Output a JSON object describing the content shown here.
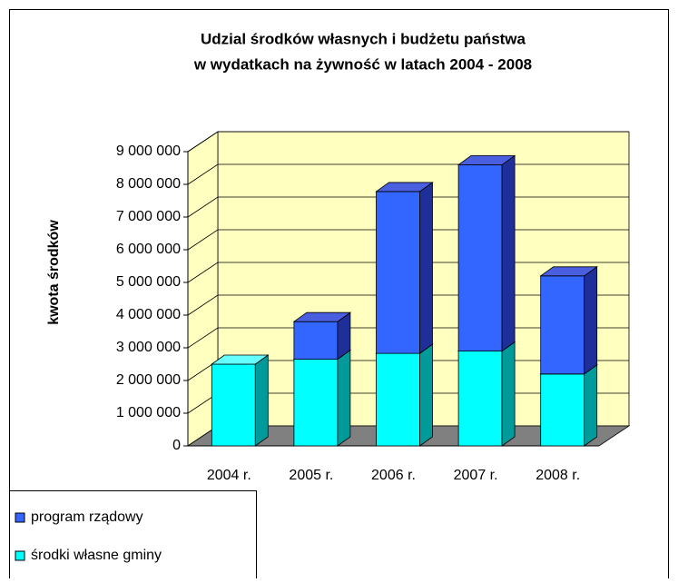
{
  "chart_data": {
    "type": "bar3d_stacked",
    "title": [
      "Udzial środków własnych i budżetu państwa",
      "w wydatkach na żywność w latach 2004 - 2008"
    ],
    "ylabel": "kwota środków",
    "categories": [
      "2004 r.",
      "2005 r.",
      "2006 r.",
      "2007 r.",
      "2008 r."
    ],
    "series": [
      {
        "name": "środki własne gminy",
        "color": "#00ffff",
        "side": "#009a9a",
        "top": "#66ffff",
        "values": [
          2500000,
          2650000,
          2830000,
          2900000,
          2200000
        ]
      },
      {
        "name": "program rządowy",
        "color": "#3366ff",
        "side": "#1f2f99",
        "top": "#4a5fe0",
        "values": [
          0,
          1150000,
          4950000,
          5700000,
          3000000
        ]
      }
    ],
    "ylim": [
      0,
      9000000
    ],
    "yticks": [
      0,
      {
        "value": 1000000,
        "label": "1 000 000"
      },
      {
        "value": 2000000,
        "label": "2 000 000"
      },
      {
        "value": 3000000,
        "label": "3 000 000"
      },
      {
        "value": 4000000,
        "label": "4 000 000"
      },
      {
        "value": 5000000,
        "label": "5 000 000"
      },
      {
        "value": 6000000,
        "label": "6 000 000"
      },
      {
        "value": 7000000,
        "label": "7 000 000"
      },
      {
        "value": 8000000,
        "label": "8 000 000"
      },
      {
        "value": 9000000,
        "label": "9 000 000"
      }
    ],
    "grid": true
  }
}
